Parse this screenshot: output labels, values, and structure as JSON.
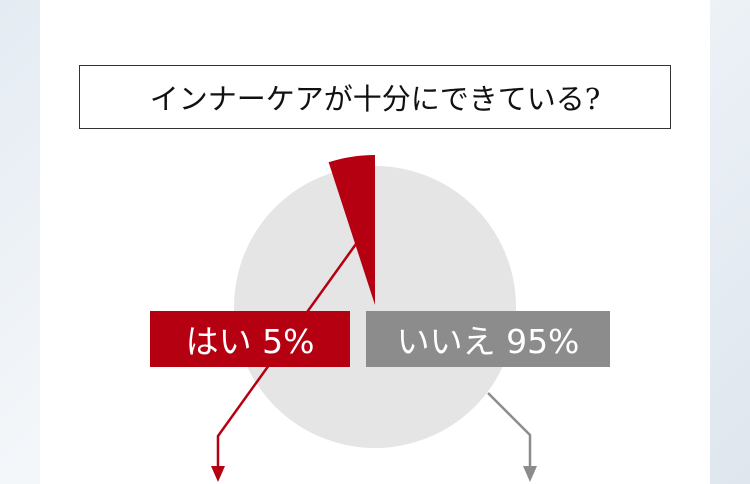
{
  "title": "インナーケアが十分にできている?",
  "chart_data": {
    "type": "pie",
    "title": "インナーケアが十分にできている?",
    "slices": [
      {
        "label": "はい",
        "value": 5,
        "display": "はい 5%",
        "color": "#b50012",
        "exploded": true
      },
      {
        "label": "いいえ",
        "value": 95,
        "display": "いいえ 95%",
        "color": "#e5e5e5",
        "label_color": "#8c8c8c"
      }
    ]
  }
}
